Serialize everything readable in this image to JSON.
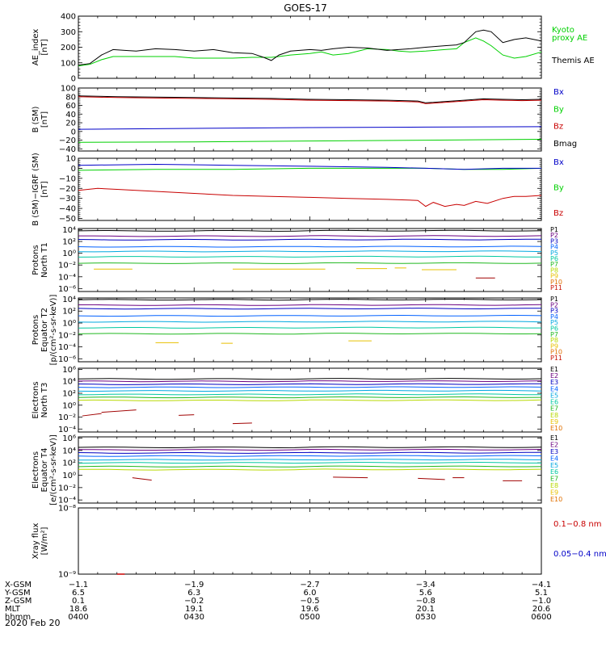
{
  "title": "GOES-17",
  "date_label": "2020 Feb 20",
  "colors": {
    "black": "#000000",
    "green": "#00d000",
    "blue": "#0000c8",
    "red": "#c80000",
    "proton_channels": [
      "#000000",
      "#6a0080",
      "#0000c0",
      "#0060ff",
      "#00a8e0",
      "#00c8a0",
      "#20b820",
      "#b8d800",
      "#e8c000",
      "#e07000",
      "#c81000",
      "#a00000"
    ],
    "electron_channels": [
      "#000000",
      "#6a0080",
      "#0000c0",
      "#0060ff",
      "#00a8e0",
      "#00c8a0",
      "#20b820",
      "#b8d800",
      "#e8c000",
      "#e07000",
      "#c81000",
      "#a00000"
    ]
  },
  "panels": [
    {
      "id": "ae",
      "ylabel": [
        "AE_index",
        "[nT]"
      ],
      "scale": "linear",
      "ylim": [
        0,
        400
      ],
      "ticks": [
        0,
        100,
        200,
        300,
        400
      ],
      "tick_labels": [
        "0",
        "100",
        "200",
        "300",
        "400"
      ],
      "legend": [
        {
          "text": "Kyoto",
          "color": "#00d000"
        },
        {
          "text": "proxy AE",
          "color": "#00d000"
        },
        {
          "text": "Themis AE",
          "color": "#000000"
        }
      ]
    },
    {
      "id": "bsm",
      "ylabel": [
        "B (SM)",
        "[nT]"
      ],
      "scale": "linear",
      "ylim": [
        -45,
        100
      ],
      "ticks": [
        -40,
        -20,
        0,
        20,
        40,
        60,
        80,
        100
      ],
      "tick_labels": [
        "−40",
        "−20",
        "0",
        "20",
        "40",
        "60",
        "80",
        "100"
      ],
      "legend": [
        {
          "text": "Bx",
          "color": "#0000c8"
        },
        {
          "text": "By",
          "color": "#00d000"
        },
        {
          "text": "Bz",
          "color": "#c80000"
        },
        {
          "text": "Bmag",
          "color": "#000000"
        }
      ]
    },
    {
      "id": "bigrf",
      "ylabel": [
        "B (SM)−IGRF (SM)",
        "[nT]"
      ],
      "scale": "linear",
      "ylim": [
        -52,
        10
      ],
      "ticks": [
        -50,
        -40,
        -30,
        -20,
        -10,
        0,
        10
      ],
      "tick_labels": [
        "−50",
        "−40",
        "−30",
        "−20",
        "−10",
        "0",
        "10"
      ],
      "legend": [
        {
          "text": "Bx",
          "color": "#0000c8"
        },
        {
          "text": "By",
          "color": "#00d000"
        },
        {
          "text": "Bz",
          "color": "#c80000"
        }
      ]
    },
    {
      "id": "pn",
      "ylabel": [
        "Protons",
        "North T1"
      ],
      "scale": "log",
      "ylim": [
        -6.5,
        4.2
      ],
      "ticks": [
        -6,
        -4,
        -2,
        0,
        2,
        4
      ],
      "tick_labels": [
        "10⁻⁶",
        "10⁻⁴",
        "10⁻²",
        "10⁰",
        "10²",
        "10⁴"
      ],
      "legend": [
        "P1",
        "P2",
        "P3",
        "P4",
        "P5",
        "P6",
        "P7",
        "P8",
        "P9",
        "P10",
        "P11"
      ]
    },
    {
      "id": "pe",
      "ylabel": [
        "Protons",
        "Equator T2",
        "[p/(cm²-s-sr-keV)]"
      ],
      "scale": "log",
      "ylim": [
        -6.5,
        4.2
      ],
      "ticks": [
        -6,
        -4,
        -2,
        0,
        2,
        4
      ],
      "tick_labels": [
        "10⁻⁶",
        "10⁻⁴",
        "10⁻²",
        "10⁰",
        "10²",
        "10⁴"
      ],
      "legend": [
        "P1",
        "P2",
        "P3",
        "P4",
        "P5",
        "P6",
        "P7",
        "P8",
        "P9",
        "P10",
        "P11"
      ]
    },
    {
      "id": "en",
      "ylabel": [
        "Electrons",
        "North T3"
      ],
      "scale": "log",
      "ylim": [
        -4.5,
        6.2
      ],
      "ticks": [
        -4,
        -2,
        0,
        2,
        4,
        6
      ],
      "tick_labels": [
        "10⁻⁴",
        "10⁻²",
        "10⁰",
        "10²",
        "10⁴",
        "10⁶"
      ],
      "legend": [
        "E1",
        "E2",
        "E3",
        "E4",
        "E5",
        "E6",
        "E7",
        "E8",
        "E9",
        "E10"
      ]
    },
    {
      "id": "ee",
      "ylabel": [
        "Electrons",
        "Equator T4",
        "[e/(cm²-s-sr-keV)]"
      ],
      "scale": "log",
      "ylim": [
        -4.5,
        6.2
      ],
      "ticks": [
        -4,
        -2,
        0,
        2,
        4,
        6
      ],
      "tick_labels": [
        "10⁻⁴",
        "10⁻²",
        "10⁰",
        "10²",
        "10⁴",
        "10⁶"
      ],
      "legend": [
        "E1",
        "E2",
        "E3",
        "E4",
        "E5",
        "E6",
        "E7",
        "E8",
        "E9",
        "E10"
      ]
    },
    {
      "id": "xray",
      "ylabel": [
        "Xray flux",
        "[W/m²]"
      ],
      "scale": "log",
      "ylim": [
        -9,
        -8
      ],
      "ticks": [
        -9,
        -8
      ],
      "tick_labels": [
        "10⁻⁹",
        "10⁻⁸"
      ],
      "legend": [
        {
          "text": "0.1−0.8 nm",
          "color": "#c80000"
        },
        {
          "text": "0.05−0.4 nm",
          "color": "#0000c8"
        }
      ]
    }
  ],
  "axis_table": {
    "row_labels": [
      "X-GSM",
      "Y-GSM",
      "Z-GSM",
      "MLT",
      "hhmm"
    ],
    "columns": [
      {
        "t": 0,
        "values": [
          "−1.1",
          "6.5",
          "0.1",
          "18.6",
          "0400"
        ]
      },
      {
        "t": 30,
        "values": [
          "−1.9",
          "6.3",
          "−0.2",
          "19.1",
          "0430"
        ]
      },
      {
        "t": 60,
        "values": [
          "−2.7",
          "6.0",
          "−0.5",
          "19.6",
          "0500"
        ]
      },
      {
        "t": 90,
        "values": [
          "−3.4",
          "5.6",
          "−0.8",
          "20.1",
          "0530"
        ]
      },
      {
        "t": 120,
        "values": [
          "−4.1",
          "5.1",
          "−1.0",
          "20.6",
          "0600"
        ]
      }
    ]
  },
  "chart_data": {
    "type": "line",
    "title": "GOES-17",
    "x_unit": "minutes after 0400 UT",
    "xlim": [
      0,
      120
    ],
    "series": {
      "ae_themis": {
        "name": "Themis AE",
        "x": [
          0,
          3,
          6,
          9,
          12,
          15,
          20,
          25,
          30,
          35,
          40,
          45,
          48,
          50,
          52,
          55,
          60,
          63,
          66,
          70,
          75,
          80,
          83,
          86,
          90,
          95,
          98,
          100,
          103,
          105,
          107,
          110,
          113,
          116,
          120
        ],
        "y": [
          85,
          95,
          150,
          185,
          180,
          175,
          190,
          185,
          175,
          185,
          165,
          160,
          135,
          115,
          150,
          175,
          185,
          180,
          190,
          200,
          195,
          180,
          185,
          190,
          200,
          210,
          215,
          230,
          300,
          310,
          300,
          230,
          250,
          260,
          240
        ]
      },
      "ae_kyoto": {
        "name": "Kyoto proxy AE",
        "x": [
          0,
          3,
          6,
          9,
          12,
          15,
          20,
          25,
          30,
          35,
          40,
          45,
          48,
          50,
          52,
          55,
          60,
          63,
          66,
          70,
          75,
          80,
          83,
          86,
          90,
          95,
          98,
          100,
          103,
          105,
          107,
          110,
          113,
          116,
          120
        ],
        "y": [
          80,
          90,
          120,
          140,
          140,
          140,
          140,
          140,
          130,
          130,
          130,
          135,
          135,
          135,
          140,
          150,
          160,
          170,
          150,
          160,
          190,
          185,
          175,
          170,
          175,
          185,
          190,
          230,
          260,
          240,
          210,
          150,
          130,
          140,
          170
        ]
      },
      "b_bx": {
        "name": "Bx",
        "x": [
          0,
          30,
          60,
          90,
          120
        ],
        "y": [
          5,
          7,
          9,
          10,
          11
        ]
      },
      "b_by": {
        "name": "By",
        "x": [
          0,
          30,
          60,
          90,
          120
        ],
        "y": [
          -25,
          -24,
          -22,
          -20,
          -18
        ]
      },
      "b_bz": {
        "name": "Bz",
        "x": [
          0,
          10,
          20,
          30,
          40,
          50,
          60,
          70,
          80,
          88,
          90,
          92,
          95,
          100,
          105,
          110,
          115,
          120
        ],
        "y": [
          80,
          78,
          77,
          76,
          75,
          74,
          72,
          71,
          70,
          68,
          64,
          65,
          67,
          70,
          73,
          72,
          71,
          72
        ]
      },
      "b_bmag": {
        "name": "Bmag",
        "x": [
          0,
          10,
          20,
          30,
          40,
          50,
          60,
          70,
          80,
          88,
          90,
          92,
          95,
          100,
          105,
          110,
          115,
          120
        ],
        "y": [
          82,
          80,
          79,
          78,
          77,
          76,
          74,
          73,
          72,
          70,
          66,
          67,
          69,
          72,
          75,
          74,
          73,
          74
        ]
      },
      "d_bx": {
        "name": "Bx",
        "x": [
          0,
          20,
          40,
          60,
          80,
          90,
          100,
          110,
          120
        ],
        "y": [
          3,
          4,
          3,
          2,
          1,
          0,
          -1,
          0,
          0
        ]
      },
      "d_by": {
        "name": "By",
        "x": [
          0,
          20,
          40,
          60,
          80,
          90,
          100,
          110,
          120
        ],
        "y": [
          -2,
          -1,
          -1,
          0,
          0,
          0,
          -1,
          -1,
          0
        ]
      },
      "d_bz": {
        "name": "Bz",
        "x": [
          0,
          5,
          10,
          20,
          30,
          40,
          50,
          60,
          70,
          80,
          88,
          90,
          92,
          95,
          98,
          100,
          103,
          106,
          110,
          113,
          116,
          120
        ],
        "y": [
          -22,
          -20,
          -21,
          -23,
          -25,
          -27,
          -28,
          -29,
          -30,
          -31,
          -32,
          -38,
          -34,
          -38,
          -36,
          -37,
          -33,
          -35,
          -30,
          -28,
          -28,
          -27
        ]
      },
      "p_north": {
        "levels_log10": [
          3.8,
          2.9,
          2.3,
          1.1,
          0.3,
          -0.6,
          -1.7,
          -2.7,
          -3.6,
          -4.4,
          -5.0
        ]
      },
      "p_equator": {
        "levels_log10": [
          3.9,
          3.0,
          2.4,
          1.2,
          0.2,
          -0.8,
          -1.8,
          -2.8,
          -3.7,
          -4.5,
          -5.1
        ]
      },
      "e_north": {
        "levels_log10": [
          4.4,
          4.0,
          3.5,
          3.0,
          2.4,
          1.8,
          1.3,
          0.8,
          -1.2,
          -3.2
        ]
      },
      "e_equator": {
        "levels_log10": [
          4.5,
          4.1,
          3.6,
          3.1,
          2.5,
          2.0,
          1.4,
          0.9,
          -0.5,
          -1.6
        ]
      }
    }
  }
}
